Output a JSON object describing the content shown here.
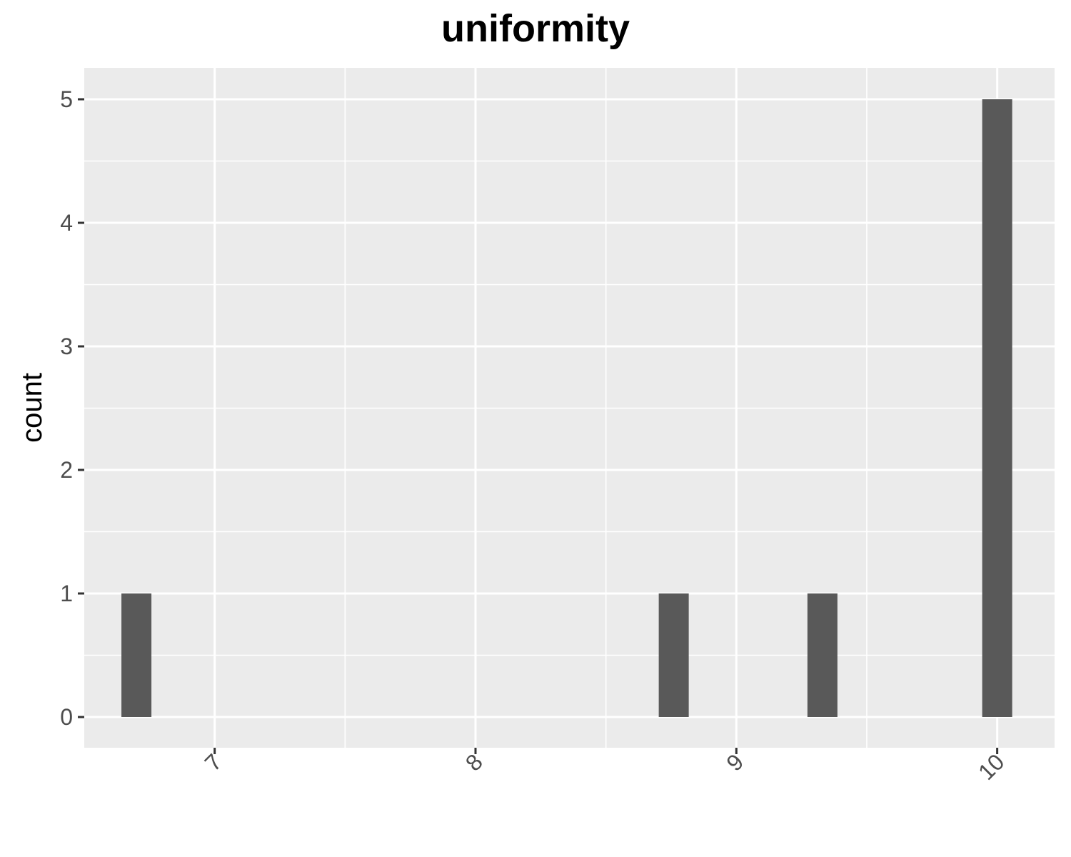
{
  "chart_data": {
    "type": "bar",
    "title": "uniformity",
    "xlabel": "",
    "ylabel": "count",
    "xlim": [
      6.5,
      10.22
    ],
    "ylim": [
      0,
      5.25
    ],
    "x_ticks": [
      "7",
      "8",
      "9",
      "10"
    ],
    "y_ticks": [
      "0",
      "1",
      "2",
      "3",
      "4",
      "5"
    ],
    "bin_width": 0.115,
    "bars": [
      {
        "x": 6.7,
        "count": 1
      },
      {
        "x": 8.76,
        "count": 1
      },
      {
        "x": 9.33,
        "count": 1
      },
      {
        "x": 10.0,
        "count": 5
      }
    ],
    "grid": true,
    "legend": "none",
    "colors": {
      "bar": "#595959",
      "panel": "#ebebeb",
      "grid": "#ffffff",
      "tick": "#333333"
    }
  }
}
